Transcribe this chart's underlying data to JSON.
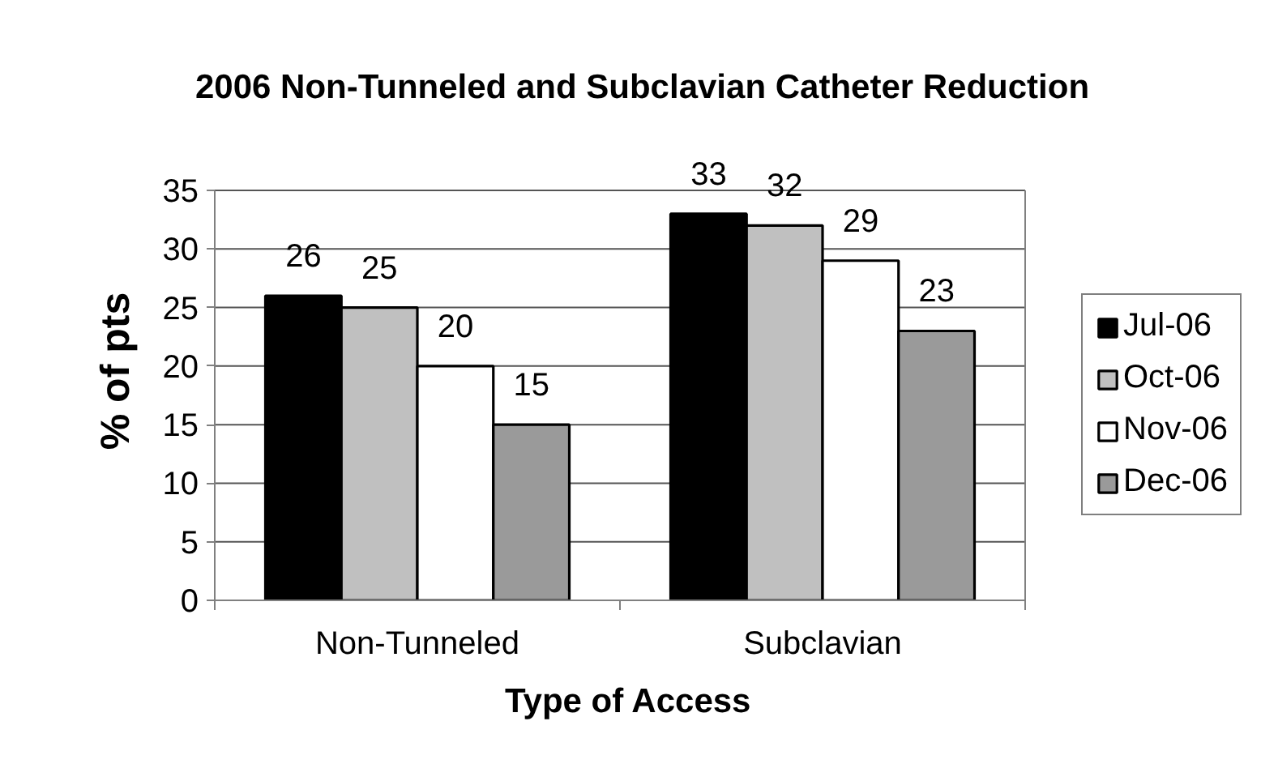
{
  "chart_data": {
    "type": "bar",
    "title": "2006 Non-Tunneled and Subclavian Catheter Reduction",
    "xlabel": "Type of Access",
    "ylabel": "% of pts",
    "categories": [
      "Non-Tunneled",
      "Subclavian"
    ],
    "series": [
      {
        "name": "Jul-06",
        "color": "#000000",
        "values": [
          26,
          33
        ]
      },
      {
        "name": "Oct-06",
        "color": "#c0c0c0",
        "values": [
          25,
          32
        ]
      },
      {
        "name": "Nov-06",
        "color": "#ffffff",
        "values": [
          20,
          29
        ]
      },
      {
        "name": "Dec-06",
        "color": "#9a9a9a",
        "values": [
          15,
          23
        ]
      }
    ],
    "ylim": [
      0,
      35
    ],
    "yticks": [
      0,
      5,
      10,
      15,
      20,
      25,
      30,
      35
    ],
    "grid": "y",
    "legend": "right",
    "data_labels": true
  }
}
